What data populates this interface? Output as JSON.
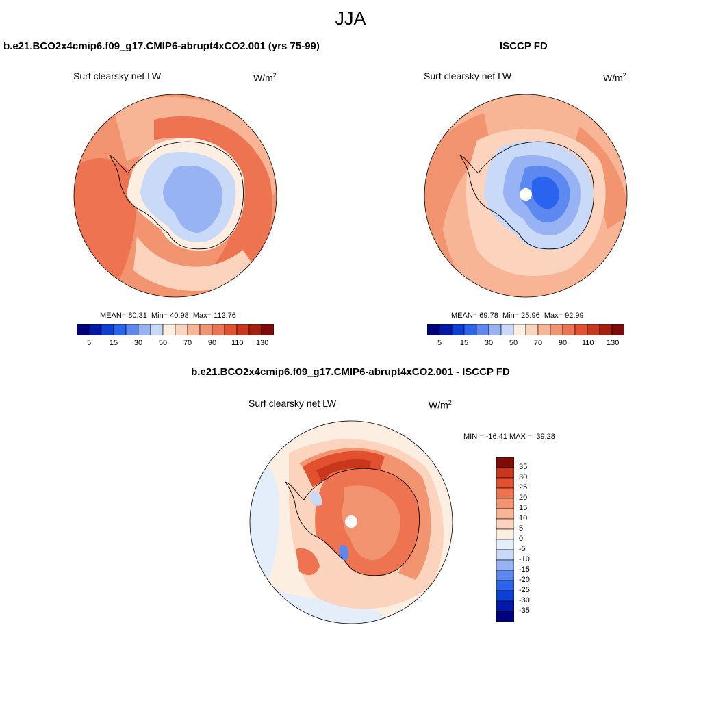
{
  "season": "JJA",
  "panels": [
    {
      "id": "model",
      "case_title": "b.e21.BCO2x4cmip6.f09_g17.CMIP6-abrupt4xCO2.001 (yrs 75-99)",
      "variable": "Surf clearsky net LW",
      "units_base": "W/m",
      "units_exp": "2",
      "stats": {
        "mean_label": "MEAN=",
        "mean": "80.31",
        "min_label": "Min=",
        "min": "40.98",
        "max_label": "Max=",
        "max": "112.76"
      }
    },
    {
      "id": "obs",
      "case_title": "ISCCP FD",
      "variable": "Surf clearsky net LW",
      "units_base": "W/m",
      "units_exp": "2",
      "stats": {
        "mean_label": "MEAN=",
        "mean": "69.78",
        "min_label": "Min=",
        "min": "25.96",
        "max_label": "Max=",
        "max": "92.99"
      }
    },
    {
      "id": "diff",
      "case_title": "b.e21.BCO2x4cmip6.f09_g17.CMIP6-abrupt4xCO2.001 - ISCCP FD",
      "variable": "Surf clearsky net LW",
      "units": "W/m",
      "units_exp": "2",
      "stats_text": "MIN = -16.41 MAX =  39.28"
    }
  ],
  "colorbar_abs": {
    "colors": [
      "#00007f",
      "#0019a8",
      "#0d3fd6",
      "#2a63ee",
      "#5c88f0",
      "#98b3f4",
      "#c9d9f8",
      "#fdeee2",
      "#fcd3bc",
      "#f8b595",
      "#f39470",
      "#ee7350",
      "#e25030",
      "#c8361c",
      "#a51f0e",
      "#7d0c06"
    ],
    "tick_labels": [
      "5",
      "15",
      "30",
      "50",
      "70",
      "90",
      "110",
      "130"
    ]
  },
  "colorbar_diff": {
    "colors": [
      "#00007f",
      "#0019a8",
      "#0d3fd6",
      "#2a63ee",
      "#5c88f0",
      "#98b3f4",
      "#c9d9f8",
      "#e4eefb",
      "#fdeee2",
      "#fcd3bc",
      "#f8b595",
      "#f39470",
      "#ee7350",
      "#e25030",
      "#c8361c",
      "#7d0c06"
    ],
    "tick_labels": [
      "35",
      "30",
      "25",
      "20",
      "15",
      "10",
      "5",
      "0",
      "-5",
      "-10",
      "-15",
      "-20",
      "-25",
      "-30",
      "-35"
    ]
  },
  "chart_data": [
    {
      "type": "heatmap",
      "projection": "polar stereographic (south)",
      "title": "Surf clearsky net LW",
      "units": "W/m2",
      "mean": 80.31,
      "min": 40.98,
      "max": 112.76,
      "levels": [
        5,
        10,
        15,
        20,
        30,
        40,
        50,
        60,
        70,
        80,
        90,
        100,
        110,
        120,
        130
      ]
    },
    {
      "type": "heatmap",
      "projection": "polar stereographic (south)",
      "title": "Surf clearsky net LW",
      "units": "W/m2",
      "mean": 69.78,
      "min": 25.96,
      "max": 92.99,
      "levels": [
        5,
        10,
        15,
        20,
        30,
        40,
        50,
        60,
        70,
        80,
        90,
        100,
        110,
        120,
        130
      ]
    },
    {
      "type": "heatmap",
      "projection": "polar stereographic (south)",
      "title": "Surf clearsky net LW",
      "units": "W/m2",
      "min": -16.41,
      "max": 39.28,
      "levels": [
        -35,
        -30,
        -25,
        -20,
        -15,
        -10,
        -5,
        0,
        5,
        10,
        15,
        20,
        25,
        30,
        35
      ]
    }
  ]
}
